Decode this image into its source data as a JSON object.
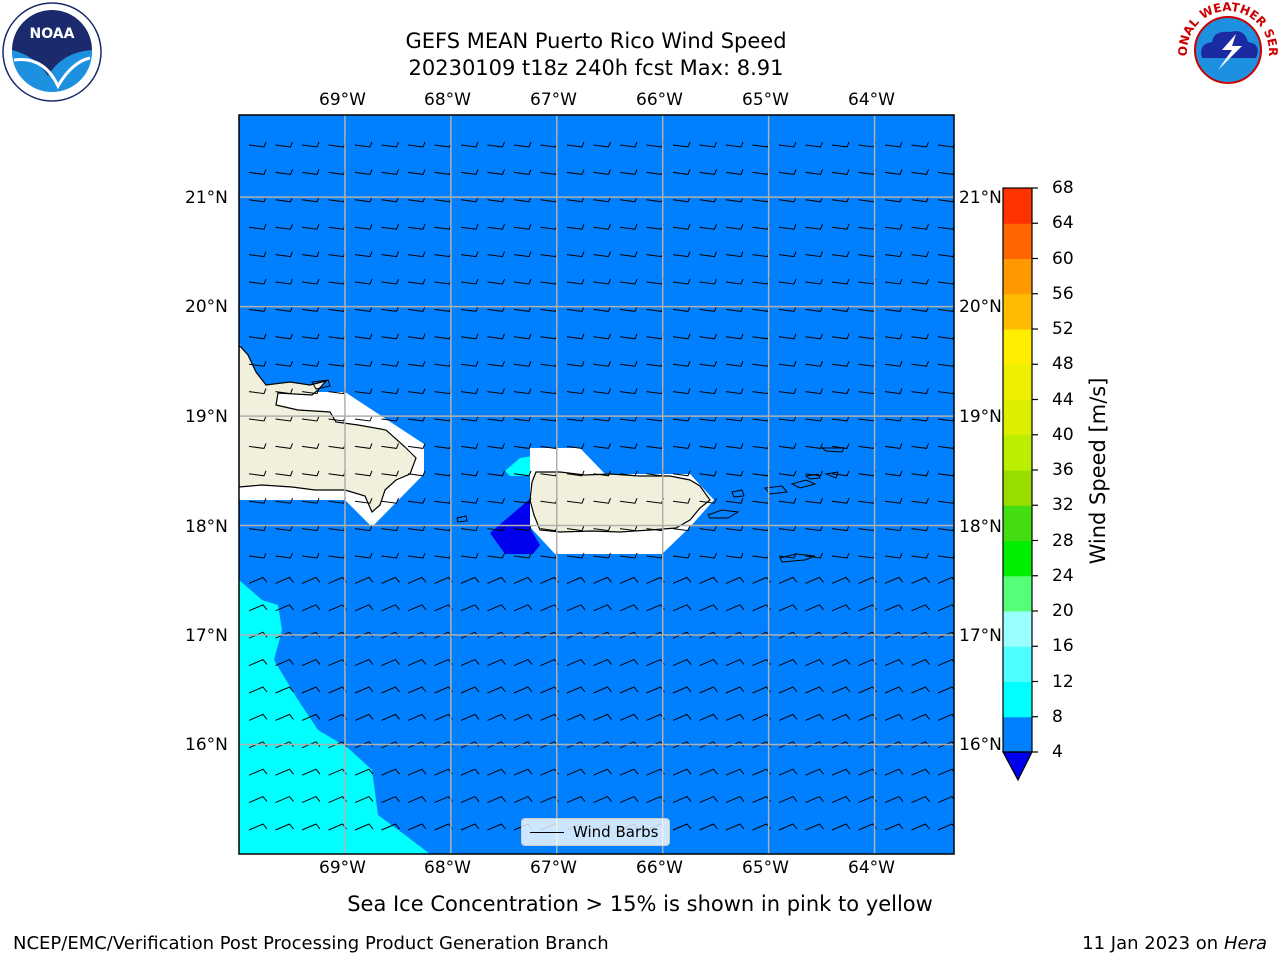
{
  "title": {
    "line1": "GEFS MEAN Puerto Rico Wind Speed",
    "line2": "20230109 t18z 240h fcst   Max: 8.91"
  },
  "map": {
    "lon_labels": [
      "69°W",
      "68°W",
      "67°W",
      "66°W",
      "65°W",
      "64°W"
    ],
    "lat_labels": [
      "21°N",
      "20°N",
      "19°N",
      "18°N",
      "17°N",
      "16°N"
    ],
    "lon_values": [
      -69,
      -68,
      -67,
      -66,
      -65,
      -64
    ],
    "lat_values": [
      21,
      20,
      19,
      18,
      17,
      16
    ],
    "lon_range": [
      -70,
      -63.25
    ],
    "lat_range": [
      15,
      21.75
    ],
    "ocean_color": "#0080ff",
    "cyan_color": "#00ffff",
    "land_color": "#f0f0dc",
    "grid": true,
    "wind_barbs_shown": true,
    "wind_direction": "easterly"
  },
  "legend": {
    "label": "Wind Barbs"
  },
  "colorbar": {
    "label": "Wind Speed [m/s]",
    "ticks": [
      "4",
      "8",
      "12",
      "16",
      "20",
      "24",
      "28",
      "32",
      "36",
      "40",
      "44",
      "48",
      "52",
      "56",
      "60",
      "64",
      "68"
    ],
    "colors": [
      "#0080ff",
      "#00ffff",
      "#4dffff",
      "#99ffff",
      "#55ff77",
      "#00ee00",
      "#44dd11",
      "#99dd00",
      "#bbee00",
      "#ddee00",
      "#eeee00",
      "#ffee00",
      "#ffbb00",
      "#ff9900",
      "#ff6600",
      "#ff3300"
    ],
    "under_color": "#0000ee"
  },
  "subtitle": "Sea Ice Concentration > 15% is shown in pink to yellow",
  "footer": {
    "left": "NCEP/EMC/Verification Post Processing Product Generation Branch",
    "right_date": "11 Jan 2023 on ",
    "right_machine": "Hera"
  },
  "logos": {
    "noaa_text": "NOAA",
    "nws_text": "NATIONAL WEATHER SERVICE"
  }
}
